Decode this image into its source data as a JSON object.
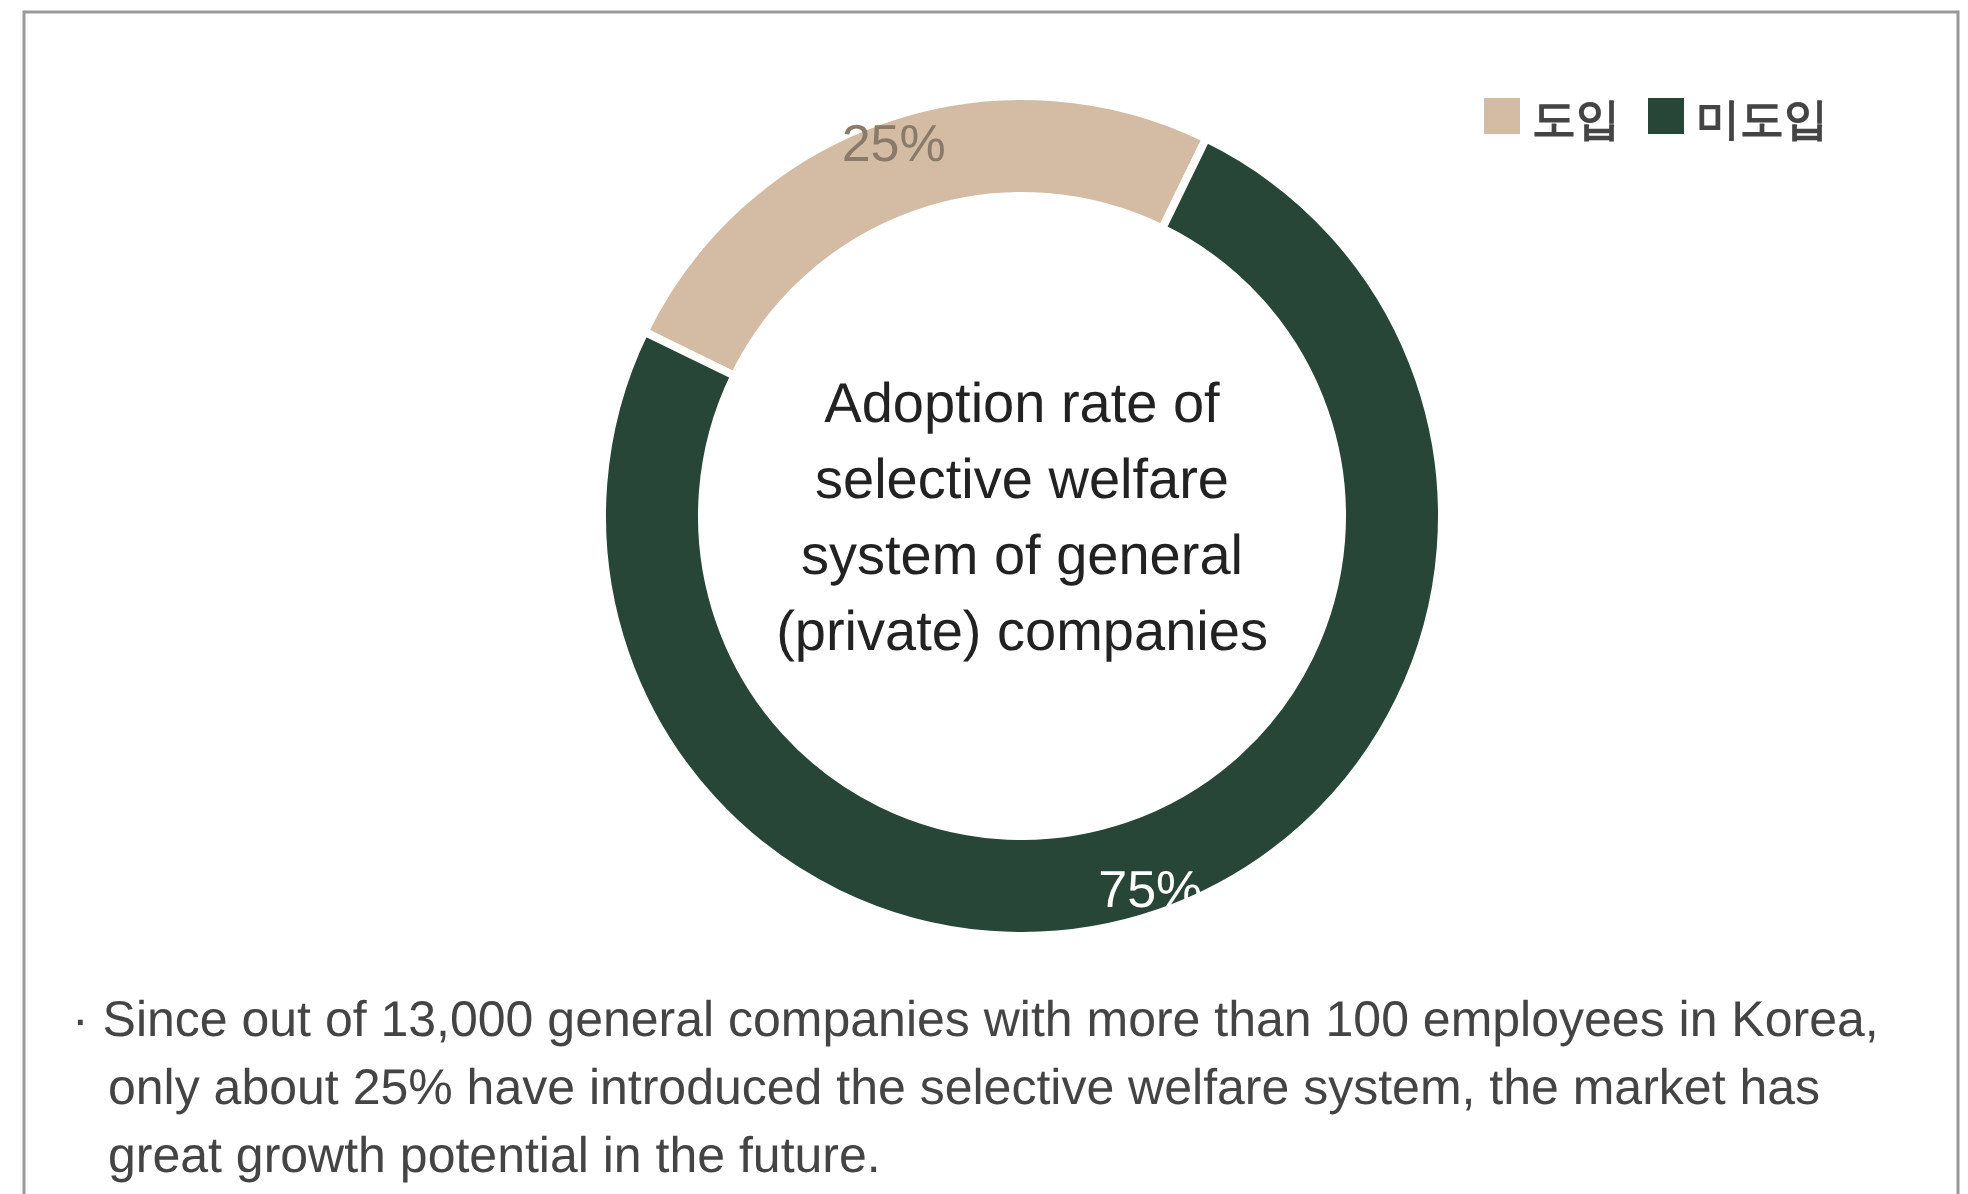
{
  "chart_data": {
    "type": "donut",
    "title": "Adoption rate of selective welfare system of general (private) companies",
    "categories": [
      "도입",
      "미도입"
    ],
    "values": [
      25,
      75
    ],
    "colors": [
      "#d4bca4",
      "#284637"
    ],
    "value_labels": [
      "25%",
      "75%"
    ],
    "legend": "top right",
    "annotations": [
      "· Since out of 13,000 general companies with more than 100 employees in Korea, only about 25% have introduced the selective welfare system, the market has great growth potential in the future."
    ]
  }
}
